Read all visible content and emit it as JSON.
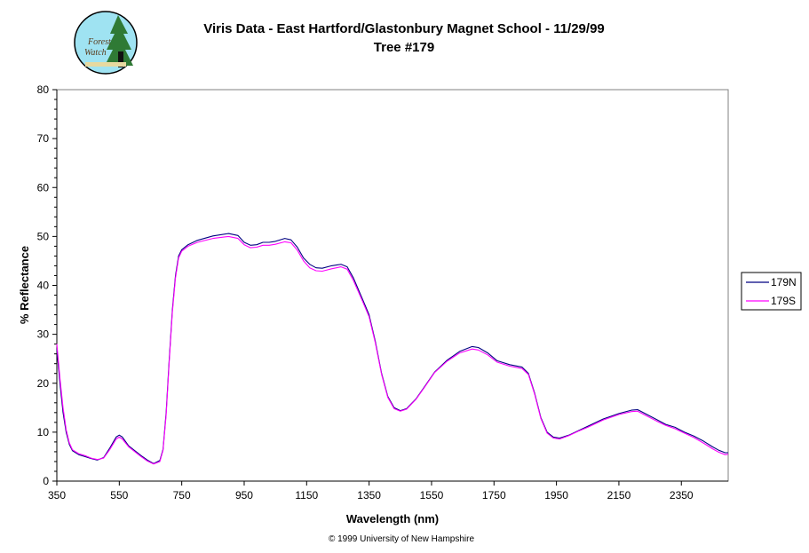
{
  "logo": {
    "text_line1": "Forest",
    "text_line2": "Watch"
  },
  "chart_data": {
    "type": "line",
    "title": "Viris Data - East Hartford/Glastonbury Magnet School - 11/29/99",
    "subtitle": "Tree #179",
    "xlabel": "Wavelength (nm)",
    "ylabel": "% Reflectance",
    "xlim": [
      350,
      2500
    ],
    "ylim": [
      0,
      80
    ],
    "x_ticks": [
      350,
      550,
      750,
      950,
      1150,
      1350,
      1550,
      1750,
      1950,
      2150,
      2350
    ],
    "y_ticks": [
      0,
      10,
      20,
      30,
      40,
      50,
      60,
      70,
      80
    ],
    "grid": false,
    "legend_position": "right",
    "series": [
      {
        "name": "179N",
        "color": "#000080",
        "points": [
          [
            350,
            27
          ],
          [
            360,
            20
          ],
          [
            370,
            14
          ],
          [
            380,
            10
          ],
          [
            390,
            7.5
          ],
          [
            400,
            6.2
          ],
          [
            420,
            5.4
          ],
          [
            440,
            5.0
          ],
          [
            460,
            4.6
          ],
          [
            480,
            4.3
          ],
          [
            500,
            4.8
          ],
          [
            520,
            6.8
          ],
          [
            540,
            9.0
          ],
          [
            550,
            9.4
          ],
          [
            560,
            9.0
          ],
          [
            580,
            7.2
          ],
          [
            600,
            6.2
          ],
          [
            620,
            5.2
          ],
          [
            640,
            4.3
          ],
          [
            660,
            3.6
          ],
          [
            680,
            4.2
          ],
          [
            690,
            6.5
          ],
          [
            700,
            14
          ],
          [
            710,
            25
          ],
          [
            720,
            35
          ],
          [
            730,
            42
          ],
          [
            740,
            46
          ],
          [
            750,
            47.3
          ],
          [
            770,
            48.3
          ],
          [
            800,
            49.2
          ],
          [
            850,
            50.1
          ],
          [
            900,
            50.6
          ],
          [
            930,
            50.2
          ],
          [
            950,
            48.8
          ],
          [
            970,
            48.2
          ],
          [
            990,
            48.3
          ],
          [
            1010,
            48.8
          ],
          [
            1030,
            48.8
          ],
          [
            1050,
            49.0
          ],
          [
            1080,
            49.6
          ],
          [
            1100,
            49.3
          ],
          [
            1120,
            47.8
          ],
          [
            1140,
            45.6
          ],
          [
            1160,
            44.3
          ],
          [
            1180,
            43.6
          ],
          [
            1200,
            43.5
          ],
          [
            1230,
            44.0
          ],
          [
            1260,
            44.3
          ],
          [
            1280,
            43.8
          ],
          [
            1300,
            41.5
          ],
          [
            1330,
            37
          ],
          [
            1350,
            34
          ],
          [
            1370,
            28.5
          ],
          [
            1390,
            22
          ],
          [
            1410,
            17.3
          ],
          [
            1430,
            15.0
          ],
          [
            1450,
            14.4
          ],
          [
            1470,
            14.8
          ],
          [
            1500,
            16.8
          ],
          [
            1530,
            19.5
          ],
          [
            1560,
            22.3
          ],
          [
            1600,
            24.7
          ],
          [
            1640,
            26.5
          ],
          [
            1680,
            27.5
          ],
          [
            1700,
            27.3
          ],
          [
            1730,
            26.2
          ],
          [
            1760,
            24.6
          ],
          [
            1800,
            23.8
          ],
          [
            1840,
            23.3
          ],
          [
            1860,
            22.0
          ],
          [
            1880,
            18.0
          ],
          [
            1900,
            13.0
          ],
          [
            1920,
            10.0
          ],
          [
            1940,
            9.0
          ],
          [
            1960,
            8.8
          ],
          [
            1990,
            9.4
          ],
          [
            2020,
            10.3
          ],
          [
            2050,
            11.2
          ],
          [
            2100,
            12.7
          ],
          [
            2150,
            13.8
          ],
          [
            2190,
            14.5
          ],
          [
            2210,
            14.6
          ],
          [
            2240,
            13.6
          ],
          [
            2270,
            12.6
          ],
          [
            2300,
            11.6
          ],
          [
            2330,
            11.0
          ],
          [
            2360,
            10.0
          ],
          [
            2390,
            9.2
          ],
          [
            2420,
            8.2
          ],
          [
            2450,
            7.0
          ],
          [
            2470,
            6.3
          ],
          [
            2490,
            5.8
          ],
          [
            2500,
            5.8
          ]
        ]
      },
      {
        "name": "179S",
        "color": "#ff00ff",
        "points": [
          [
            350,
            28
          ],
          [
            360,
            21
          ],
          [
            370,
            15
          ],
          [
            380,
            10.5
          ],
          [
            390,
            7.8
          ],
          [
            400,
            6.4
          ],
          [
            420,
            5.6
          ],
          [
            440,
            5.2
          ],
          [
            460,
            4.7
          ],
          [
            480,
            4.4
          ],
          [
            500,
            4.7
          ],
          [
            520,
            6.5
          ],
          [
            540,
            8.6
          ],
          [
            550,
            9.0
          ],
          [
            560,
            8.6
          ],
          [
            580,
            7.0
          ],
          [
            600,
            6.0
          ],
          [
            620,
            5.0
          ],
          [
            640,
            4.1
          ],
          [
            660,
            3.5
          ],
          [
            680,
            4.0
          ],
          [
            690,
            6.3
          ],
          [
            700,
            13.5
          ],
          [
            710,
            24.5
          ],
          [
            720,
            34.5
          ],
          [
            730,
            41.5
          ],
          [
            740,
            45.6
          ],
          [
            750,
            47.0
          ],
          [
            770,
            48.0
          ],
          [
            800,
            48.8
          ],
          [
            850,
            49.6
          ],
          [
            900,
            50.0
          ],
          [
            930,
            49.6
          ],
          [
            950,
            48.3
          ],
          [
            970,
            47.7
          ],
          [
            990,
            47.8
          ],
          [
            1010,
            48.2
          ],
          [
            1030,
            48.2
          ],
          [
            1050,
            48.4
          ],
          [
            1080,
            48.9
          ],
          [
            1100,
            48.7
          ],
          [
            1120,
            47.2
          ],
          [
            1140,
            45.0
          ],
          [
            1160,
            43.6
          ],
          [
            1180,
            43.0
          ],
          [
            1200,
            42.9
          ],
          [
            1230,
            43.4
          ],
          [
            1260,
            43.8
          ],
          [
            1280,
            43.3
          ],
          [
            1300,
            41.0
          ],
          [
            1330,
            36.6
          ],
          [
            1350,
            33.6
          ],
          [
            1370,
            28.2
          ],
          [
            1390,
            21.8
          ],
          [
            1410,
            17.1
          ],
          [
            1430,
            14.8
          ],
          [
            1450,
            14.3
          ],
          [
            1470,
            14.7
          ],
          [
            1500,
            16.7
          ],
          [
            1530,
            19.4
          ],
          [
            1560,
            22.2
          ],
          [
            1600,
            24.5
          ],
          [
            1640,
            26.2
          ],
          [
            1680,
            27.0
          ],
          [
            1700,
            26.8
          ],
          [
            1730,
            25.8
          ],
          [
            1760,
            24.3
          ],
          [
            1800,
            23.5
          ],
          [
            1840,
            23.0
          ],
          [
            1860,
            21.8
          ],
          [
            1880,
            17.8
          ],
          [
            1900,
            12.8
          ],
          [
            1920,
            9.8
          ],
          [
            1940,
            8.8
          ],
          [
            1960,
            8.6
          ],
          [
            1990,
            9.3
          ],
          [
            2020,
            10.2
          ],
          [
            2050,
            11.0
          ],
          [
            2100,
            12.5
          ],
          [
            2150,
            13.6
          ],
          [
            2190,
            14.2
          ],
          [
            2210,
            14.3
          ],
          [
            2240,
            13.3
          ],
          [
            2270,
            12.3
          ],
          [
            2300,
            11.4
          ],
          [
            2330,
            10.7
          ],
          [
            2360,
            9.8
          ],
          [
            2390,
            8.9
          ],
          [
            2420,
            7.8
          ],
          [
            2450,
            6.6
          ],
          [
            2470,
            5.9
          ],
          [
            2490,
            5.4
          ],
          [
            2500,
            5.5
          ]
        ]
      }
    ]
  },
  "footer": {
    "copyright": "© 1999 University of New Hampshire"
  }
}
